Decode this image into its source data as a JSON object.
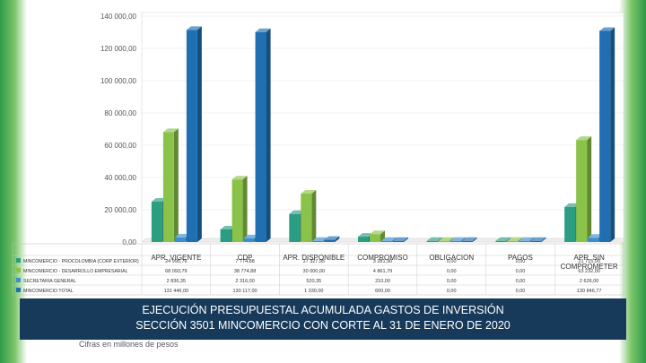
{
  "chart_data": {
    "type": "bar",
    "ylim": [
      0,
      140000
    ],
    "y_ticks": [
      "0,00",
      "20 000,00",
      "40 000,00",
      "60 000,00",
      "80 000,00",
      "100 000,00",
      "120 000,00",
      "140 000,00"
    ],
    "y_tick_values": [
      0,
      20000,
      40000,
      60000,
      80000,
      100000,
      120000,
      140000
    ],
    "categories": [
      "APR. VIGENTE",
      "CDP",
      "APR. DISPONIBLE",
      "COMPROMISO",
      "OBLIGACION",
      "PAGOS",
      "APR. SIN COMPROMETER"
    ],
    "series": [
      {
        "name": "MINCOMERCIO - PROCOLOMBIA (CORP EXTERIOR)",
        "color": "#2a9d82",
        "values": [
          24995.76,
          7774.88,
          17327.95,
          3281.9,
          0.0,
          0.0,
          21715.0
        ]
      },
      {
        "name": "MINCOMERCIO - DESARROLLO EMPRESARIAL",
        "color": "#8bc34a",
        "values": [
          68093.79,
          38774.88,
          30000.0,
          4861.79,
          0.0,
          0.0,
          63232.0
        ]
      },
      {
        "name": "SECRETARIA GENERAL",
        "color": "#3a8fce",
        "values": [
          2836.35,
          2316.0,
          520.35,
          210.0,
          0.0,
          0.0,
          2626.0
        ]
      },
      {
        "name": "MINCOMERCIO TOTAL",
        "color": "#1f6fb2",
        "values": [
          131446.0,
          130117.0,
          1330.0,
          600.0,
          0.0,
          0.0,
          130846.77
        ]
      }
    ],
    "table_rows": [
      [
        "24 995,76",
        "7 774,88",
        "17 327,95",
        "3 281,90",
        "0,00",
        "0,00",
        "21 715,00"
      ],
      [
        "68 093,79",
        "38 774,88",
        "30 000,00",
        "4 861,79",
        "0,00",
        "0,00",
        "63 232,00"
      ],
      [
        "2 836,35",
        "2 316,00",
        "520,35",
        "210,00",
        "0,00",
        "0,00",
        "2 626,00"
      ],
      [
        "131 446,00",
        "130 117,00",
        "1 330,00",
        "600,00",
        "0,00",
        "0,00",
        "130 846,77"
      ]
    ]
  },
  "banner": {
    "line1": "EJECUCIÓN PRESUPUESTAL ACUMULADA GASTOS DE INVERSIÓN",
    "line2": "SECCIÓN 3501 MINCOMERCIO CON CORTE AL 31 DE ENERO DE 2020"
  },
  "footnote": "Cifras en millones de pesos"
}
